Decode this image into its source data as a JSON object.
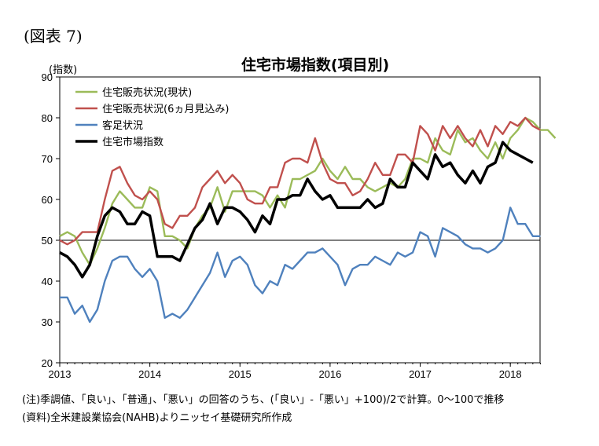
{
  "figure_label": "(図表 7)",
  "notes": [
    "(注)季調値、「良い」、「普通」、「悪い」の回答のうち、(「良い」-「悪い」+100)/2で計算。0～100で推移",
    "(資料)全米建設業協会(NAHB)よりニッセイ基礎研究所作成"
  ],
  "colors": {
    "current_sales": "#9bbb59",
    "future_sales": "#c0504d",
    "traffic": "#4f81bd",
    "hmi": "#000000",
    "reference_line": "#000000"
  },
  "chart_data": {
    "type": "line",
    "title": "住宅市場指数(項目別)",
    "ylabel": "(指数)",
    "xlabel": "",
    "ylim": [
      20,
      90
    ],
    "yticks": [
      20,
      30,
      40,
      50,
      60,
      70,
      80,
      90
    ],
    "xlim": [
      2013,
      2018.33
    ],
    "xticks": [
      "2013",
      "2014",
      "2015",
      "2016",
      "2017",
      "2018"
    ],
    "reference_line": 50,
    "grid": false,
    "legend_position": "top-left",
    "x_start": "2013-01",
    "x_frequency": "monthly",
    "series": [
      {
        "name": "住宅販売状況(現状)",
        "color_key": "current_sales",
        "values": [
          51,
          52,
          51,
          47,
          44,
          48,
          53,
          59,
          62,
          60,
          58,
          58,
          63,
          62,
          51,
          51,
          50,
          48,
          53,
          56,
          58,
          63,
          57,
          62,
          62,
          62,
          62,
          61,
          58,
          61,
          58,
          65,
          65,
          66,
          67,
          70,
          67,
          65,
          68,
          65,
          65,
          63,
          62,
          63,
          64,
          63,
          65,
          70,
          70,
          69,
          75,
          72,
          71,
          77,
          74,
          75,
          72,
          70,
          74,
          70,
          75,
          77,
          80,
          79,
          77,
          77,
          75
        ]
      },
      {
        "name": "住宅販売状況(6ヵ月見込み)",
        "color_key": "future_sales",
        "values": [
          50,
          49,
          50,
          52,
          52,
          52,
          60,
          67,
          68,
          64,
          61,
          60,
          62,
          60,
          54,
          53,
          56,
          56,
          58,
          63,
          65,
          67,
          64,
          66,
          64,
          60,
          59,
          59,
          63,
          63,
          69,
          70,
          70,
          69,
          75,
          69,
          65,
          64,
          64,
          61,
          62,
          65,
          69,
          66,
          66,
          71,
          71,
          69,
          78,
          76,
          72,
          78,
          75,
          78,
          75,
          73,
          77,
          73,
          78,
          76,
          79,
          78,
          80,
          78,
          77
        ]
      },
      {
        "name": "客足状況",
        "color_key": "traffic",
        "values": [
          36,
          36,
          32,
          34,
          30,
          33,
          40,
          45,
          46,
          46,
          43,
          41,
          43,
          40,
          31,
          32,
          31,
          33,
          36,
          39,
          42,
          47,
          41,
          45,
          46,
          44,
          39,
          37,
          40,
          39,
          44,
          43,
          45,
          47,
          47,
          48,
          46,
          44,
          39,
          43,
          44,
          44,
          46,
          45,
          44,
          47,
          46,
          47,
          52,
          51,
          46,
          53,
          52,
          51,
          49,
          48,
          48,
          47,
          48,
          50,
          58,
          54,
          54,
          51,
          51
        ]
      },
      {
        "name": "住宅市場指数",
        "color_key": "hmi",
        "values": [
          47,
          46,
          44,
          41,
          44,
          51,
          56,
          58,
          57,
          54,
          54,
          57,
          56,
          46,
          46,
          46,
          45,
          49,
          53,
          55,
          59,
          54,
          58,
          58,
          57,
          55,
          52,
          56,
          54,
          60,
          60,
          61,
          61,
          65,
          62,
          60,
          61,
          58,
          58,
          58,
          58,
          60,
          58,
          59,
          65,
          63,
          63,
          69,
          67,
          65,
          71,
          68,
          69,
          66,
          64,
          67,
          64,
          68,
          69,
          74,
          72,
          71,
          70,
          69
        ]
      }
    ]
  }
}
